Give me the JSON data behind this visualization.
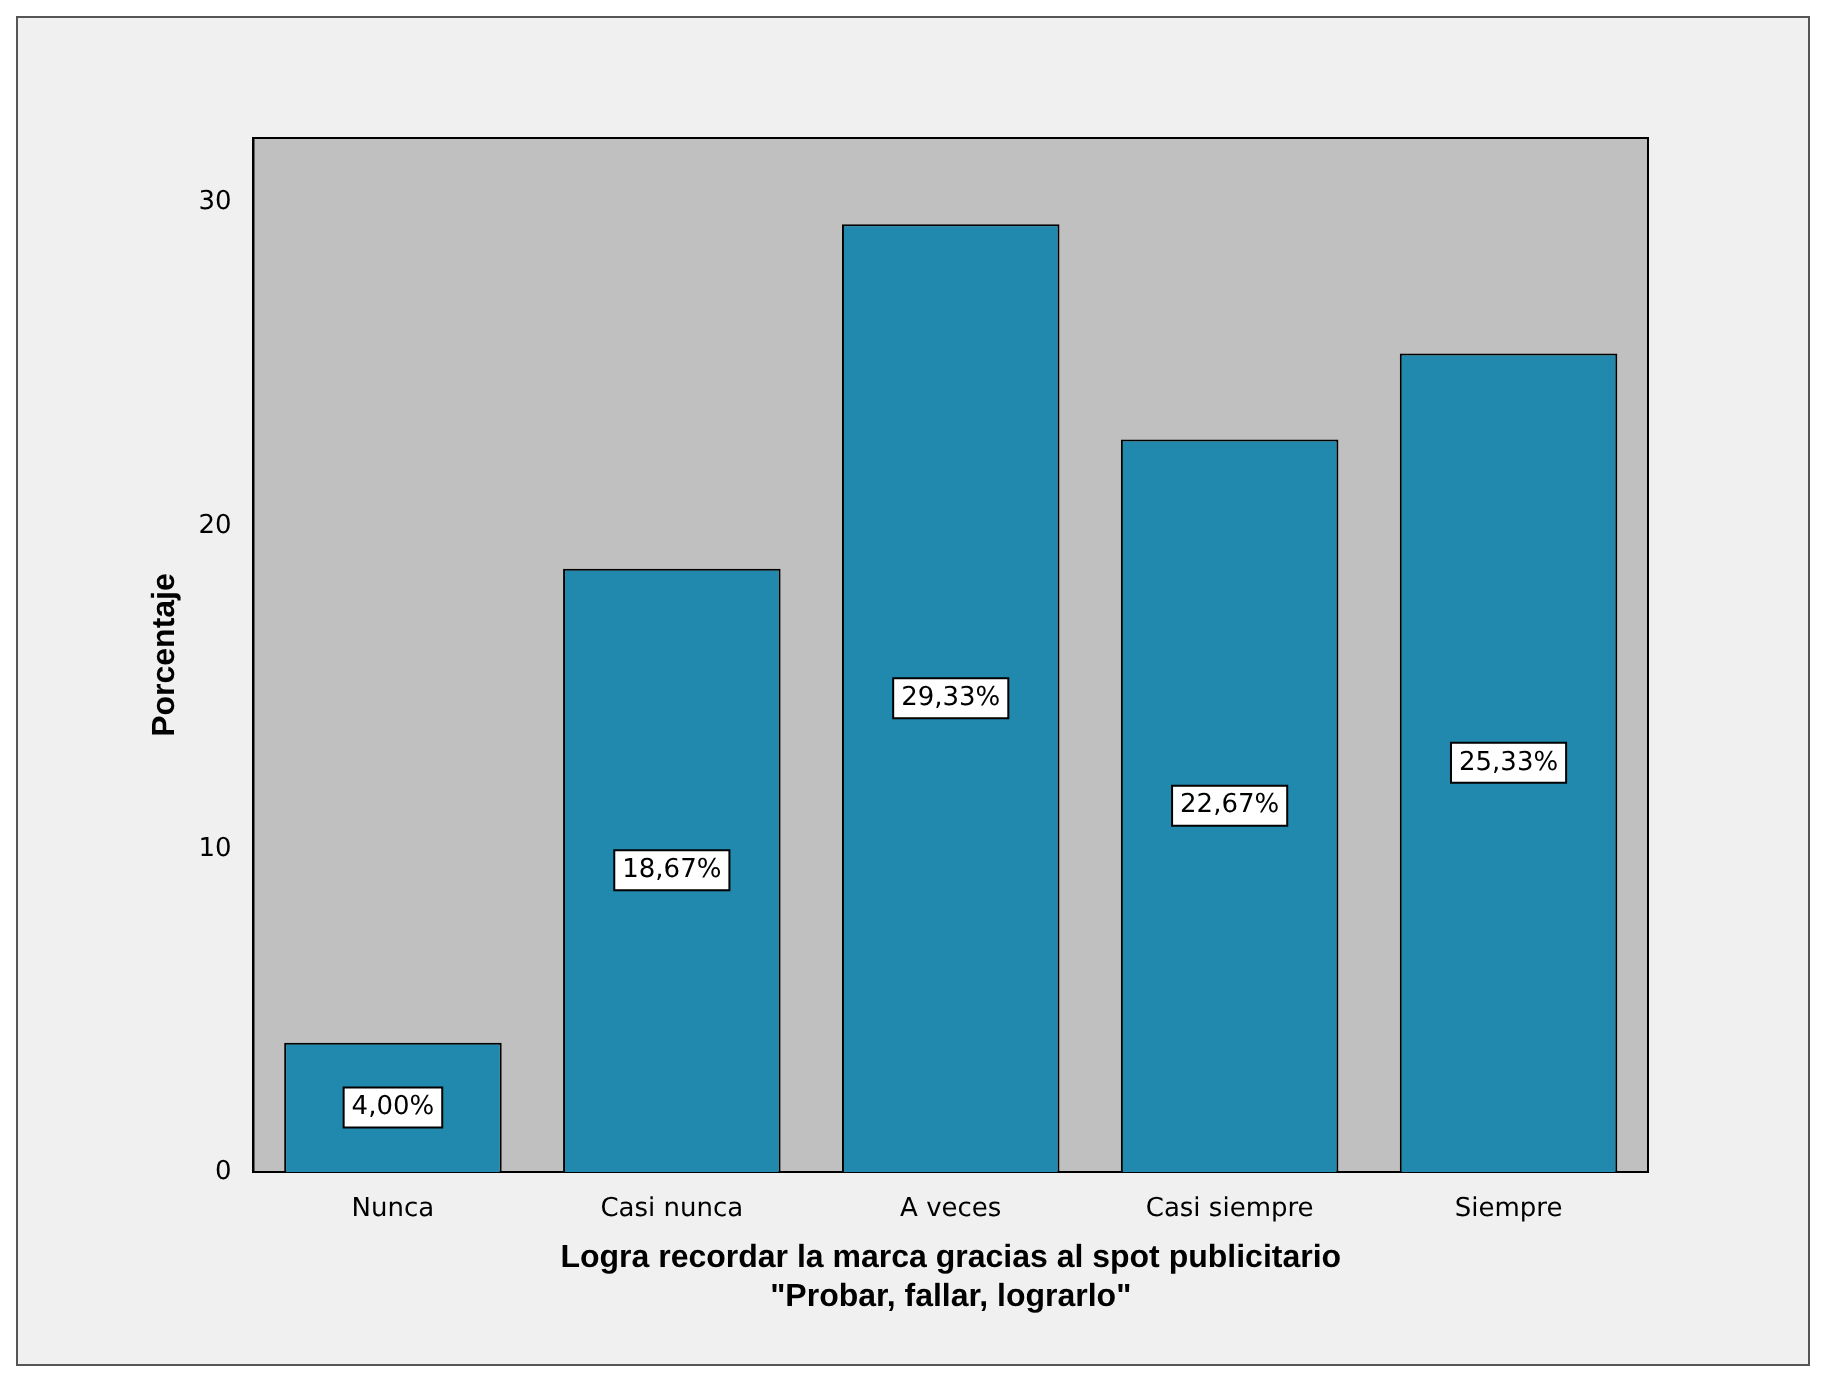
{
  "chart_data": {
    "type": "bar",
    "xlabel": "Logra recordar la marca gracias al spot publicitario\n\"Probar, fallar, lograrlo\"",
    "ylabel": "Porcentaje",
    "categories": [
      "Nunca",
      "Casi nunca",
      "A veces",
      "Casi siempre",
      "Siempre"
    ],
    "values": [
      4.0,
      18.67,
      29.33,
      22.67,
      25.33
    ],
    "value_labels": [
      "4,00%",
      "18,67%",
      "29,33%",
      "22,67%",
      "25,33%"
    ],
    "color": "#2089ad",
    "ylim": [
      0,
      32
    ],
    "yticks": [
      0,
      10,
      20,
      30
    ]
  }
}
